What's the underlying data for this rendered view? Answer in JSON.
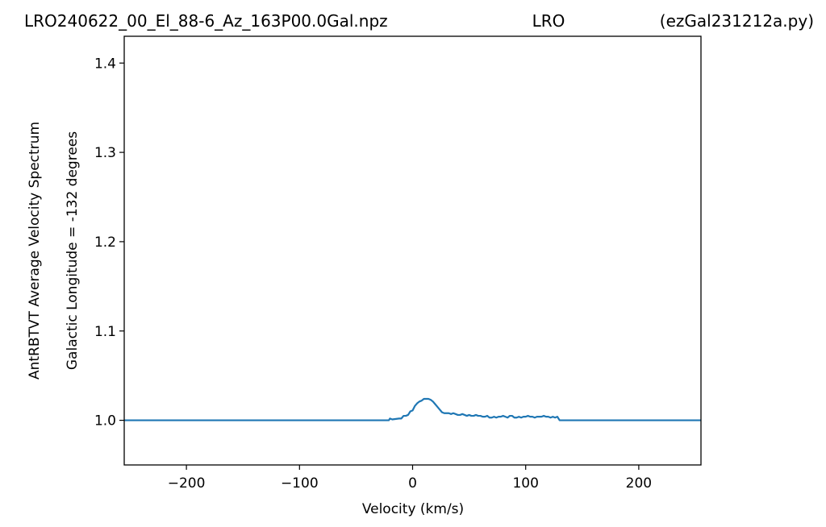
{
  "header": {
    "left": "LRO240622_00_El_88-6_Az_163P00.0Gal.npz",
    "center": "LRO",
    "right": "(ezGal231212a.py)"
  },
  "chart_data": {
    "type": "line",
    "xlabel": "Velocity (km/s)",
    "ylabel_line1": "AntRBTVT Average Velocity Spectrum",
    "ylabel_line2": "Galactic Longitude = -132 degrees",
    "xlim": [
      -255,
      255
    ],
    "ylim": [
      0.95,
      1.43
    ],
    "xticks": [
      -200,
      -100,
      0,
      100,
      200
    ],
    "xtick_labels": [
      "−200",
      "−100",
      "0",
      "100",
      "200"
    ],
    "yticks": [
      1.0,
      1.1,
      1.2,
      1.3,
      1.4
    ],
    "ytick_labels": [
      "1.0",
      "1.1",
      "1.2",
      "1.3",
      "1.4"
    ],
    "grid": false,
    "line_color": "#1f77b4",
    "series": [
      {
        "x": [
          -255,
          -21,
          -20,
          -18,
          -12,
          -10,
          -8,
          -6,
          -4,
          -2,
          0,
          2,
          4,
          6,
          8,
          10,
          12,
          14,
          16,
          18,
          20,
          22,
          24,
          26,
          28,
          30,
          32,
          34,
          36,
          38,
          40,
          42,
          44,
          46,
          48,
          50,
          52,
          54,
          56,
          58,
          60,
          62,
          64,
          66,
          68,
          70,
          72,
          74,
          76,
          78,
          80,
          82,
          84,
          86,
          88,
          90,
          92,
          94,
          96,
          98,
          100,
          102,
          104,
          106,
          108,
          110,
          112,
          114,
          116,
          118,
          120,
          122,
          124,
          126,
          128,
          130,
          132,
          255
        ],
        "y": [
          1.0,
          1.0,
          1.002,
          1.001,
          1.002,
          1.002,
          1.005,
          1.005,
          1.006,
          1.01,
          1.011,
          1.016,
          1.019,
          1.021,
          1.022,
          1.024,
          1.024,
          1.024,
          1.023,
          1.021,
          1.018,
          1.015,
          1.012,
          1.009,
          1.008,
          1.008,
          1.008,
          1.007,
          1.008,
          1.007,
          1.006,
          1.006,
          1.007,
          1.006,
          1.005,
          1.006,
          1.005,
          1.005,
          1.006,
          1.005,
          1.005,
          1.004,
          1.004,
          1.005,
          1.003,
          1.003,
          1.004,
          1.003,
          1.004,
          1.004,
          1.005,
          1.004,
          1.003,
          1.005,
          1.005,
          1.003,
          1.003,
          1.004,
          1.003,
          1.004,
          1.004,
          1.005,
          1.004,
          1.004,
          1.003,
          1.004,
          1.004,
          1.004,
          1.005,
          1.004,
          1.004,
          1.003,
          1.004,
          1.003,
          1.004,
          1.0,
          1.0,
          1.0
        ]
      }
    ]
  }
}
